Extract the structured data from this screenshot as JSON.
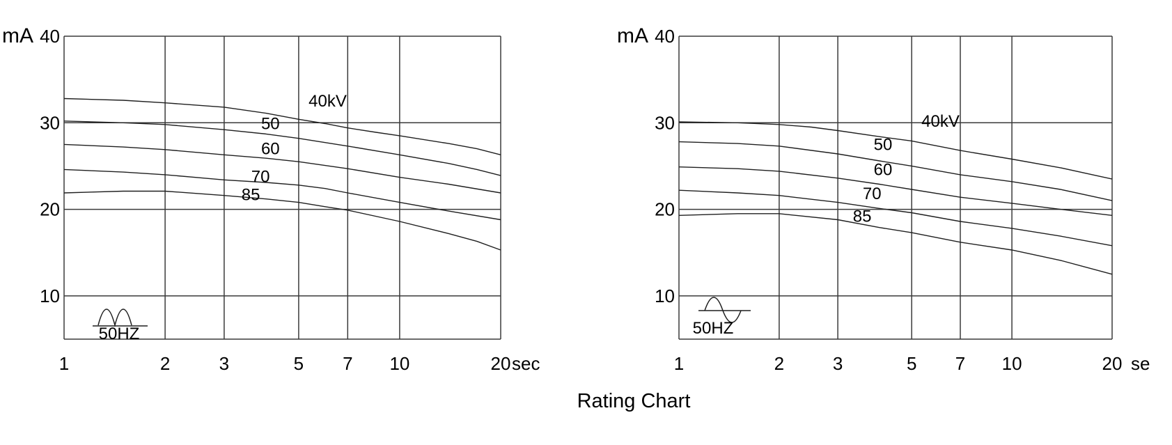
{
  "page": {
    "caption": "Rating Chart",
    "background_color": "#ffffff",
    "line_color": "#000000"
  },
  "chart_data": [
    {
      "type": "line",
      "position": "left",
      "x_scale": "log",
      "x_range": [
        1,
        20
      ],
      "y_range": [
        5,
        40
      ],
      "x_ticks": [
        1,
        2,
        3,
        5,
        7,
        10,
        20
      ],
      "x_unit_suffix": "sec",
      "y_ticks": [
        40,
        30,
        20,
        10
      ],
      "y_unit": "mA",
      "grid": true,
      "frequency_label": "50HZ",
      "waveform_icon": "full-wave-rectified",
      "series": [
        {
          "name": "40kV",
          "label": "40kV",
          "label_x": 6.1,
          "label_y": 32.5,
          "points": [
            [
              1,
              32.8
            ],
            [
              1.5,
              32.6
            ],
            [
              2,
              32.3
            ],
            [
              3,
              31.8
            ],
            [
              4,
              31.1
            ],
            [
              5,
              30.4
            ],
            [
              6,
              29.9
            ],
            [
              7,
              29.4
            ],
            [
              8.5,
              28.9
            ],
            [
              10,
              28.5
            ],
            [
              14,
              27.6
            ],
            [
              17,
              27.0
            ],
            [
              20,
              26.3
            ]
          ]
        },
        {
          "name": "50kV",
          "label": "50",
          "label_x": 4.12,
          "label_y": 29.9,
          "points": [
            [
              1,
              30.2
            ],
            [
              1.5,
              30.0
            ],
            [
              2,
              29.8
            ],
            [
              3,
              29.2
            ],
            [
              4,
              28.7
            ],
            [
              5,
              28.2
            ],
            [
              7,
              27.3
            ],
            [
              10,
              26.3
            ],
            [
              14,
              25.3
            ],
            [
              17,
              24.6
            ],
            [
              20,
              23.9
            ]
          ]
        },
        {
          "name": "60kV",
          "label": "60",
          "label_x": 4.12,
          "label_y": 27.0,
          "points": [
            [
              1,
              27.5
            ],
            [
              1.5,
              27.2
            ],
            [
              2,
              26.9
            ],
            [
              3,
              26.3
            ],
            [
              4,
              25.9
            ],
            [
              5,
              25.5
            ],
            [
              7,
              24.7
            ],
            [
              10,
              23.7
            ],
            [
              14,
              22.9
            ],
            [
              20,
              21.9
            ]
          ]
        },
        {
          "name": "70kV",
          "label": "70",
          "label_x": 3.85,
          "label_y": 23.8,
          "points": [
            [
              1,
              24.6
            ],
            [
              1.5,
              24.3
            ],
            [
              2,
              24.0
            ],
            [
              3,
              23.4
            ],
            [
              4,
              23.1
            ],
            [
              5,
              22.8
            ],
            [
              6,
              22.4
            ],
            [
              7,
              21.9
            ],
            [
              10,
              20.8
            ],
            [
              14,
              19.8
            ],
            [
              20,
              18.8
            ]
          ]
        },
        {
          "name": "85kV",
          "label": "85",
          "label_x": 3.6,
          "label_y": 21.7,
          "points": [
            [
              1,
              21.9
            ],
            [
              1.5,
              22.1
            ],
            [
              2,
              22.1
            ],
            [
              3,
              21.6
            ],
            [
              4,
              21.2
            ],
            [
              5,
              20.8
            ],
            [
              6,
              20.3
            ],
            [
              7,
              19.9
            ],
            [
              10,
              18.6
            ],
            [
              14,
              17.2
            ],
            [
              17,
              16.3
            ],
            [
              20,
              15.3
            ]
          ]
        }
      ]
    },
    {
      "type": "line",
      "position": "right",
      "x_scale": "log",
      "x_range": [
        1,
        20
      ],
      "y_range": [
        5,
        40
      ],
      "x_ticks": [
        1,
        2,
        3,
        5,
        7,
        10,
        20
      ],
      "x_unit_suffix": "se",
      "y_ticks": [
        40,
        30,
        20,
        10
      ],
      "y_unit": "mA",
      "grid": true,
      "frequency_label": "50HZ",
      "waveform_icon": "sine-wave",
      "series": [
        {
          "name": "40kV",
          "label": "40kV",
          "label_x": 6.1,
          "label_y": 30.2,
          "points": [
            [
              1,
              30.1
            ],
            [
              1.5,
              30.0
            ],
            [
              2,
              29.8
            ],
            [
              2.5,
              29.5
            ],
            [
              3,
              29.1
            ],
            [
              4,
              28.4
            ],
            [
              5,
              27.9
            ],
            [
              7,
              26.8
            ],
            [
              10,
              25.8
            ],
            [
              14,
              24.8
            ],
            [
              20,
              23.5
            ]
          ]
        },
        {
          "name": "50kV",
          "label": "50",
          "label_x": 4.1,
          "label_y": 27.5,
          "points": [
            [
              1,
              27.8
            ],
            [
              1.5,
              27.6
            ],
            [
              2,
              27.3
            ],
            [
              3,
              26.4
            ],
            [
              4,
              25.6
            ],
            [
              5,
              25.0
            ],
            [
              7,
              24.0
            ],
            [
              10,
              23.2
            ],
            [
              14,
              22.3
            ],
            [
              20,
              21.0
            ]
          ]
        },
        {
          "name": "60kV",
          "label": "60",
          "label_x": 4.1,
          "label_y": 24.6,
          "points": [
            [
              1,
              24.9
            ],
            [
              1.5,
              24.7
            ],
            [
              2,
              24.4
            ],
            [
              3,
              23.6
            ],
            [
              4,
              22.9
            ],
            [
              5,
              22.3
            ],
            [
              7,
              21.4
            ],
            [
              10,
              20.7
            ],
            [
              14,
              20.0
            ],
            [
              20,
              19.3
            ]
          ]
        },
        {
          "name": "70kV",
          "label": "70",
          "label_x": 3.8,
          "label_y": 21.8,
          "points": [
            [
              1,
              22.2
            ],
            [
              1.5,
              21.9
            ],
            [
              2,
              21.6
            ],
            [
              3,
              20.8
            ],
            [
              4,
              20.1
            ],
            [
              5,
              19.6
            ],
            [
              7,
              18.6
            ],
            [
              10,
              17.8
            ],
            [
              14,
              16.9
            ],
            [
              20,
              15.8
            ]
          ]
        },
        {
          "name": "85kV",
          "label": "85",
          "label_x": 3.55,
          "label_y": 19.2,
          "points": [
            [
              1,
              19.3
            ],
            [
              1.5,
              19.5
            ],
            [
              2,
              19.5
            ],
            [
              3,
              18.8
            ],
            [
              4,
              17.9
            ],
            [
              5,
              17.3
            ],
            [
              7,
              16.2
            ],
            [
              10,
              15.3
            ],
            [
              14,
              14.1
            ],
            [
              20,
              12.5
            ]
          ]
        }
      ]
    }
  ]
}
